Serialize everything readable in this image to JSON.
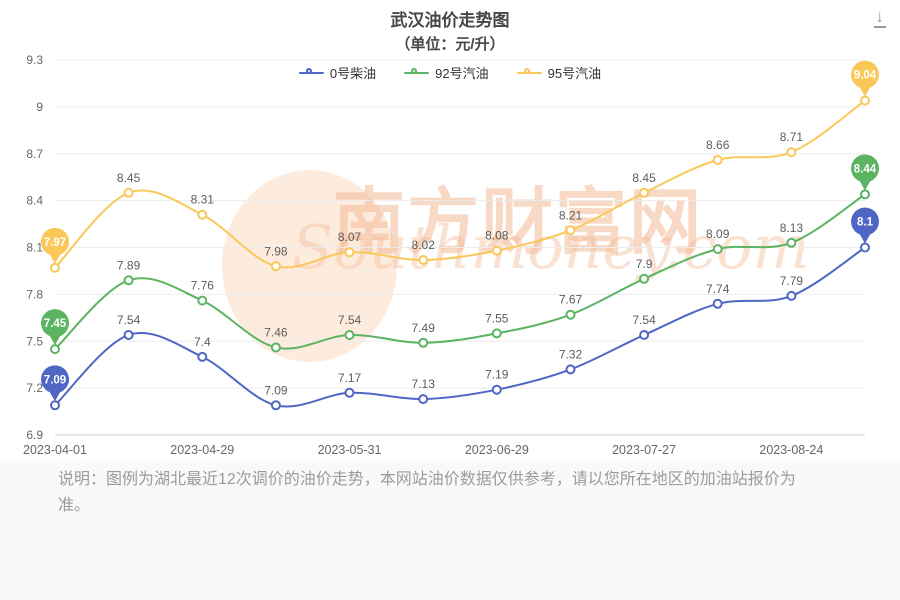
{
  "header": {
    "title": "武汉油价走势图",
    "subtitle": "（单位：元/升）"
  },
  "toolbar": {
    "download_glyph": "↓"
  },
  "watermark": {
    "text": "南方财富网",
    "subtext": "Southmoney.com"
  },
  "footer": {
    "note": "说明：图例为湖北最近12次调价的油价走势，本网站油价数据仅供参考，请以您所在地区的加油站报价为准。"
  },
  "chart_data": {
    "type": "line",
    "title": "武汉油价走势图",
    "subtitle": "（单位：元/升）",
    "unit": "元/升",
    "ylim": [
      6.9,
      9.3
    ],
    "y_ticks": [
      6.9,
      7.2,
      7.5,
      7.8,
      8.1,
      8.4,
      8.7,
      9,
      9.3
    ],
    "grid": true,
    "smooth": true,
    "legend_position": "top",
    "x_labels": [
      "2023-04-01",
      "2023-04-29",
      "2023-05-31",
      "2023-06-29",
      "2023-07-27",
      "2023-08-24"
    ],
    "x_label_point_indices": [
      0,
      2,
      4,
      6,
      8,
      10
    ],
    "num_points": 12,
    "series": [
      {
        "name": "0号柴油",
        "color": "#4f66c4",
        "values": [
          7.09,
          7.54,
          7.4,
          7.09,
          7.17,
          7.13,
          7.19,
          7.32,
          7.54,
          7.74,
          7.79,
          8.1
        ]
      },
      {
        "name": "92号汽油",
        "color": "#5cb362",
        "values": [
          7.45,
          7.89,
          7.76,
          7.46,
          7.54,
          7.49,
          7.55,
          7.67,
          7.9,
          8.09,
          8.13,
          8.44
        ]
      },
      {
        "name": "95号汽油",
        "color": "#fac858",
        "values": [
          7.97,
          8.45,
          8.31,
          7.98,
          8.07,
          8.02,
          8.08,
          8.21,
          8.45,
          8.66,
          8.71,
          9.04
        ]
      }
    ]
  }
}
